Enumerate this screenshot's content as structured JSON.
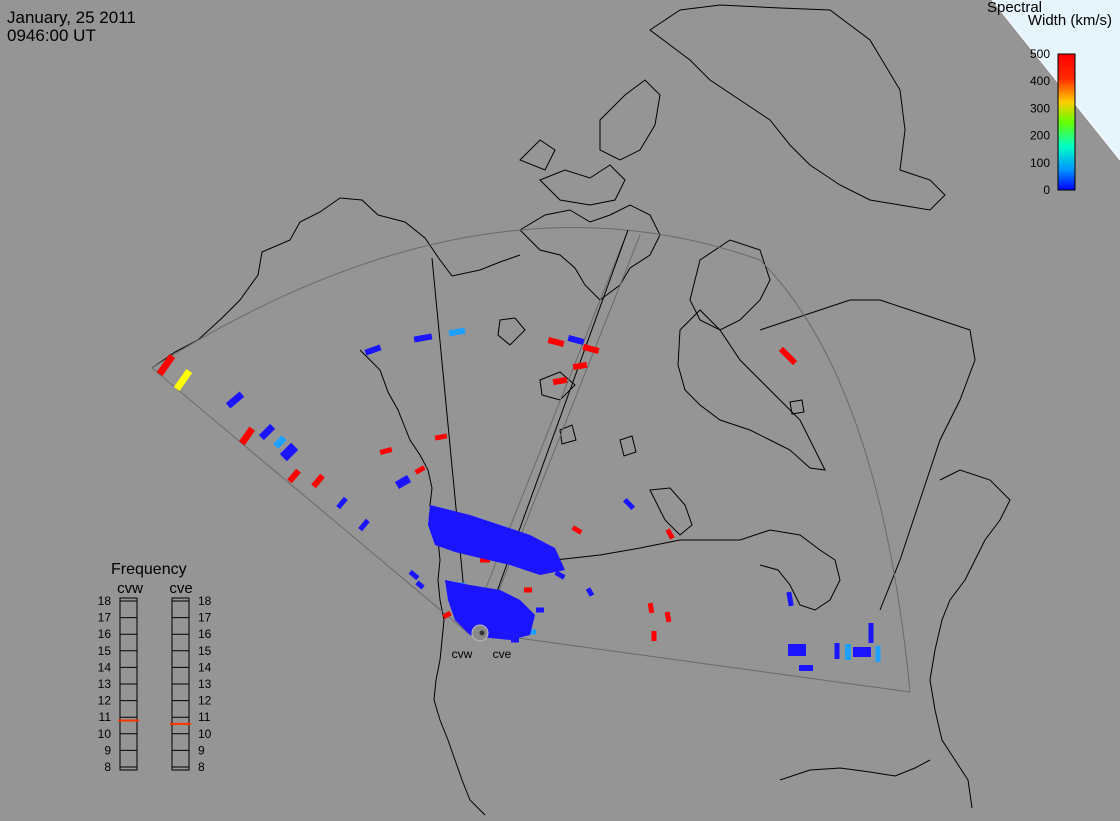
{
  "header": {
    "date": "January, 25 2011",
    "time": "0946:00 UT"
  },
  "colorbar": {
    "title_line1": "Spectral",
    "title_line2": "Width (km/s)",
    "ticks": [
      "500",
      "400",
      "300",
      "200",
      "100",
      "0"
    ],
    "colors": [
      "#ff0000",
      "#ff8000",
      "#ffff00",
      "#00ff00",
      "#00c8ff",
      "#0000ff"
    ]
  },
  "frequency_panel": {
    "title": "Frequency",
    "radars": [
      "cvw",
      "cve"
    ],
    "ticks": [
      "18",
      "17",
      "16",
      "15",
      "14",
      "13",
      "12",
      "11",
      "10",
      "9",
      "8"
    ],
    "current_values": {
      "cvw": 10.8,
      "cve": 10.6
    }
  },
  "site_labels": [
    "cvw",
    "cve"
  ],
  "palette": {
    "background": "#959595",
    "ocean_corner": "#e6f4fb",
    "coast": "#000000",
    "fov_line": "#6a6a6a",
    "high_width": "#ff0000",
    "mid_width": "#ffff00",
    "cyan_width": "#1ea0ff",
    "low_width": "#1a14ff"
  }
}
